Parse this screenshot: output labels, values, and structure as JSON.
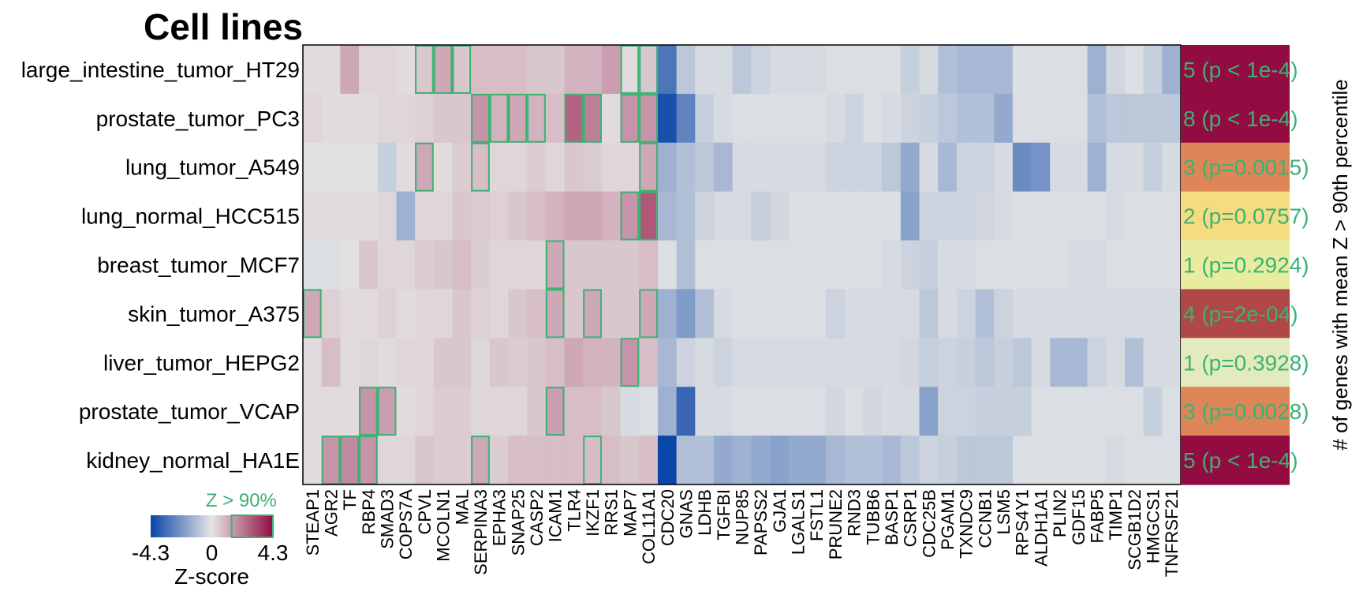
{
  "chart_data": {
    "type": "heatmap",
    "title": "Cell lines",
    "rows": [
      "large_intestine_tumor_HT29",
      "prostate_tumor_PC3",
      "lung_tumor_A549",
      "lung_normal_HCC515",
      "breast_tumor_MCF7",
      "skin_tumor_A375",
      "liver_tumor_HEPG2",
      "prostate_tumor_VCAP",
      "kidney_normal_HA1E"
    ],
    "columns": [
      "STEAP1",
      "AGR2",
      "TF",
      "RBP4",
      "SMAD3",
      "COPS7A",
      "CPVL",
      "MCOLN1",
      "MAL",
      "SERPINA3",
      "EPHA3",
      "SNAP25",
      "CASP2",
      "ICAM1",
      "TLR4",
      "IKZF1",
      "RRS1",
      "MAP7",
      "COL11A1",
      "CDC20",
      "GNAS",
      "LDHB",
      "TGFBI",
      "NUP85",
      "PAPSS2",
      "GJA1",
      "LGALS1",
      "FSTL1",
      "PRUNE2",
      "RND3",
      "TUBB6",
      "BASP1",
      "CSRP1",
      "CDC25B",
      "PGAM1",
      "TXNDC9",
      "CCNB1",
      "LSM5",
      "RPS4Y1",
      "ALDH1A1",
      "PLIN2",
      "GDF15",
      "FABP5",
      "TIMP1",
      "SCGB1D2",
      "HMGCS1",
      "TNFRSF21"
    ],
    "values": [
      [
        0.2,
        0.2,
        1.2,
        0.3,
        0.3,
        0.2,
        0.6,
        1.2,
        0.6,
        0.8,
        0.8,
        0.8,
        0.6,
        0.6,
        1.0,
        1.0,
        1.4,
        0.2,
        0.6,
        -3.0,
        -0.8,
        -0.3,
        -0.3,
        -0.8,
        -0.5,
        -0.3,
        -0.3,
        -0.3,
        -0.2,
        -0.2,
        -0.2,
        -0.2,
        -0.6,
        -0.3,
        -1.0,
        -1.2,
        -1.2,
        -1.2,
        -0.2,
        -0.2,
        -0.2,
        -0.2,
        -1.4,
        -0.4,
        -0.2,
        -0.6,
        -1.4
      ],
      [
        0.3,
        0.2,
        0.2,
        0.2,
        0.3,
        0.3,
        0.4,
        0.6,
        0.6,
        1.6,
        1.0,
        1.2,
        1.0,
        0.8,
        2.6,
        2.0,
        0.2,
        1.6,
        1.6,
        -4.0,
        -2.6,
        -0.6,
        -0.3,
        -0.2,
        -0.2,
        -0.2,
        -0.2,
        -0.2,
        -0.3,
        -0.5,
        -0.2,
        -0.3,
        -0.5,
        -0.6,
        -0.8,
        -1.0,
        -1.0,
        -1.6,
        -0.2,
        -0.2,
        -0.2,
        -0.2,
        -1.0,
        -0.8,
        -0.8,
        -0.8,
        -0.8
      ],
      [
        0.1,
        0.1,
        0.1,
        0.1,
        -0.6,
        0.2,
        1.2,
        0.2,
        0.5,
        0.8,
        0.3,
        0.3,
        0.5,
        0.3,
        0.6,
        0.5,
        0.3,
        0.3,
        1.2,
        -1.4,
        -1.0,
        -0.8,
        -1.2,
        -0.3,
        -0.3,
        -0.3,
        -0.3,
        -0.3,
        -0.5,
        -0.5,
        -0.5,
        -0.8,
        -1.6,
        -0.3,
        -1.2,
        -0.5,
        -0.5,
        -0.3,
        -2.4,
        -2.2,
        -0.3,
        -0.3,
        -1.4,
        -0.3,
        -0.3,
        -0.6,
        -0.3
      ],
      [
        0.2,
        0.2,
        0.2,
        0.2,
        0.3,
        -1.4,
        0.3,
        0.3,
        0.6,
        0.5,
        0.4,
        0.6,
        0.8,
        1.0,
        1.2,
        1.2,
        1.0,
        1.6,
        2.8,
        -1.2,
        -1.0,
        -0.5,
        -0.3,
        -0.3,
        -0.6,
        -0.4,
        -0.2,
        -0.2,
        -0.2,
        -0.2,
        -0.2,
        -0.2,
        -1.8,
        -0.5,
        -0.5,
        -0.5,
        -0.4,
        -0.3,
        -0.2,
        -0.2,
        -0.2,
        -0.2,
        -0.2,
        -0.3,
        -0.2,
        -0.2,
        -0.2
      ],
      [
        -0.2,
        -0.2,
        0.1,
        0.6,
        0.3,
        0.3,
        0.5,
        0.6,
        0.8,
        0.5,
        0.3,
        0.3,
        0.3,
        1.2,
        0.6,
        0.6,
        0.6,
        0.6,
        0.8,
        -0.2,
        -1.0,
        -0.2,
        -0.2,
        -0.2,
        -0.2,
        -0.2,
        -0.2,
        -0.2,
        -0.2,
        -0.2,
        -0.2,
        -0.3,
        -0.5,
        -0.6,
        -0.3,
        -0.3,
        -0.2,
        -0.2,
        -0.2,
        -0.2,
        -0.2,
        -0.3,
        -0.3,
        -0.2,
        -0.2,
        -0.2,
        -0.2
      ],
      [
        1.2,
        0.4,
        0.2,
        0.2,
        0.4,
        0.2,
        0.3,
        0.3,
        0.6,
        0.4,
        0.3,
        0.6,
        0.8,
        1.2,
        0.6,
        1.2,
        0.6,
        0.6,
        1.2,
        -1.4,
        -2.0,
        -1.0,
        -0.3,
        -0.2,
        -0.2,
        -0.2,
        -0.2,
        -0.2,
        -0.5,
        -0.3,
        -0.3,
        -0.3,
        -0.3,
        -0.8,
        -0.3,
        -0.5,
        -1.0,
        -0.5,
        -0.3,
        -0.3,
        -0.3,
        -0.3,
        -0.3,
        -0.3,
        -0.3,
        -0.3,
        -0.3
      ],
      [
        0.2,
        0.8,
        0.2,
        0.3,
        0.2,
        0.3,
        0.3,
        0.6,
        0.6,
        0.3,
        0.6,
        0.5,
        0.6,
        0.8,
        1.2,
        1.0,
        1.0,
        1.6,
        0.8,
        -1.2,
        -0.5,
        -0.3,
        -0.5,
        -0.3,
        -0.3,
        -0.3,
        -0.3,
        -0.3,
        -0.3,
        -0.3,
        -0.3,
        -0.3,
        -0.4,
        -0.6,
        -0.5,
        -0.6,
        -0.8,
        -0.6,
        -0.8,
        -0.3,
        -1.2,
        -1.2,
        -0.5,
        -0.3,
        -1.0,
        -0.3,
        -0.3
      ],
      [
        0.2,
        0.2,
        0.2,
        1.6,
        1.4,
        0.2,
        0.3,
        0.5,
        0.5,
        0.3,
        0.3,
        0.3,
        0.6,
        1.4,
        0.8,
        0.8,
        0.6,
        -0.3,
        -0.2,
        -1.4,
        -3.4,
        -0.3,
        -0.3,
        -0.2,
        -0.2,
        -0.2,
        -0.2,
        -0.2,
        -0.4,
        -0.2,
        -0.4,
        -0.3,
        -0.3,
        -1.8,
        -0.5,
        -0.5,
        -0.6,
        -0.6,
        -0.6,
        -0.2,
        -0.2,
        -0.2,
        -0.2,
        -0.2,
        -0.2,
        -0.6,
        -0.2
      ],
      [
        0.2,
        1.6,
        1.8,
        1.6,
        0.3,
        0.3,
        0.6,
        0.5,
        0.5,
        1.2,
        0.5,
        0.8,
        0.8,
        0.8,
        0.8,
        0.8,
        0.8,
        0.6,
        0.8,
        -4.3,
        -1.0,
        -1.0,
        -1.6,
        -1.4,
        -1.6,
        -1.8,
        -1.6,
        -1.6,
        -1.2,
        -1.0,
        -1.0,
        -1.2,
        -0.8,
        -0.5,
        -0.6,
        -0.8,
        -0.8,
        -0.8,
        -0.2,
        -0.2,
        -0.2,
        -0.2,
        -0.2,
        -0.3,
        -0.2,
        -0.2,
        -0.2
      ]
    ],
    "highlights": [
      [
        6,
        7,
        8,
        17,
        18
      ],
      [
        9,
        10,
        11,
        12,
        14,
        15,
        17,
        18
      ],
      [
        6,
        9,
        18
      ],
      [
        17,
        18
      ],
      [
        13
      ],
      [
        0,
        13,
        15,
        18
      ],
      [
        17
      ],
      [
        3,
        4,
        13
      ],
      [
        1,
        2,
        3,
        9,
        15
      ]
    ],
    "annotations": [
      {
        "text": "5 (p < 1e-4)",
        "color": "#920C41"
      },
      {
        "text": "8 (p < 1e-4)",
        "color": "#920C41"
      },
      {
        "text": "3 (p=0.0015)",
        "color": "#DE8658"
      },
      {
        "text": "2 (p=0.0757)",
        "color": "#F6DB81"
      },
      {
        "text": "1 (p=0.2924)",
        "color": "#E8EC9E"
      },
      {
        "text": "4 (p=2e-04)",
        "color": "#B04848"
      },
      {
        "text": "1 (p=0.3928)",
        "color": "#E3EBBE"
      },
      {
        "text": "3 (p=0.0028)",
        "color": "#DE8658"
      },
      {
        "text": "5 (p < 1e-4)",
        "color": "#920C41"
      }
    ],
    "annotation_axis_label": "# of genes with mean Z > 90th percentile",
    "legend": {
      "title": "Z-score",
      "highlight_label": "Z > 90%",
      "min": -4.3,
      "mid": 0,
      "max": 4.3,
      "tick_labels": [
        "-4.3",
        "0",
        "4.3"
      ],
      "highlight_from": 1.4
    },
    "colors": {
      "low": "#0A45A8",
      "mid": "#E5E5E5",
      "high": "#920C41",
      "highlight_border": "#3BB273",
      "annotation_text": "#3BB273"
    }
  }
}
